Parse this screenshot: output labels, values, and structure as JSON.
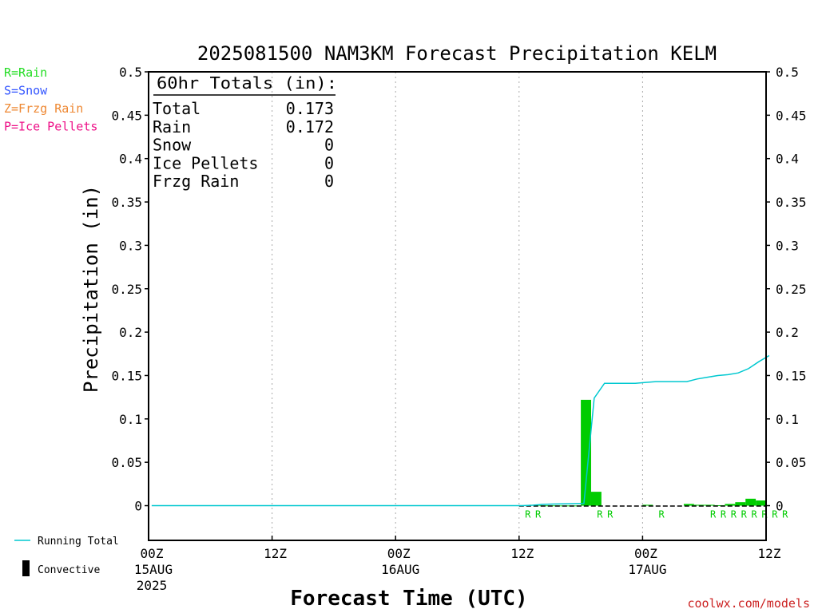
{
  "chart_data": {
    "type": "bar",
    "title": "2025081500 NAM3KM Forecast Precipitation KELM",
    "xlabel": "Forecast Time (UTC)",
    "ylabel": "Precipitation (in)",
    "ylim": [
      -0.04,
      0.5
    ],
    "xlim_hours": [
      0,
      60
    ],
    "y_ticks": [
      0,
      0.05,
      0.1,
      0.15,
      0.2,
      0.25,
      0.3,
      0.35,
      0.4,
      0.45,
      0.5
    ],
    "y_tick_labels": [
      "0",
      "0.05",
      "0.1",
      "0.15",
      "0.2",
      "0.25",
      "0.3",
      "0.35",
      "0.4",
      "0.45",
      "0.5"
    ],
    "x_ticks": [
      {
        "hour": 0,
        "label": "00Z",
        "date": "15AUG",
        "year": "2025"
      },
      {
        "hour": 12,
        "label": "12Z",
        "date": "",
        "year": ""
      },
      {
        "hour": 24,
        "label": "00Z",
        "date": "16AUG",
        "year": ""
      },
      {
        "hour": 36,
        "label": "12Z",
        "date": "",
        "year": ""
      },
      {
        "hour": 48,
        "label": "00Z",
        "date": "17AUG",
        "year": ""
      },
      {
        "hour": 60,
        "label": "12Z",
        "date": "",
        "year": ""
      }
    ],
    "grid": "vertical dotted",
    "legend_placement": "left",
    "series": [
      {
        "name": "Rain",
        "kind": "bar",
        "color": "#00cc00",
        "hours": [
          37,
          38,
          39,
          40,
          41,
          42,
          43,
          44,
          45,
          46,
          47,
          48,
          49,
          50,
          51,
          52,
          53,
          54,
          55,
          56,
          57,
          58,
          59,
          60
        ],
        "values": [
          0.0005,
          0.001,
          0.0003,
          0.0003,
          0.0002,
          0.0002,
          0.122,
          0.016,
          0,
          0,
          0,
          0,
          0.001,
          0,
          0,
          0,
          0.002,
          0.001,
          0.001,
          0.0005,
          0.002,
          0.004,
          0.008,
          0.006
        ]
      },
      {
        "name": "Running Total",
        "kind": "line",
        "color": "#00c8d0",
        "hours": [
          0,
          12,
          24,
          36,
          37,
          38,
          39,
          40,
          41,
          42,
          43,
          44,
          45,
          46,
          47,
          48,
          49,
          50,
          51,
          52,
          53,
          54,
          55,
          56,
          57,
          58,
          59,
          60
        ],
        "values": [
          0,
          0,
          0,
          0,
          0.0005,
          0.0015,
          0.0018,
          0.0021,
          0.0023,
          0.0025,
          0.124,
          0.141,
          0.141,
          0.141,
          0.141,
          0.142,
          0.143,
          0.143,
          0.143,
          0.143,
          0.146,
          0.148,
          0.15,
          0.151,
          0.153,
          0.158,
          0.166,
          0.173
        ]
      }
    ],
    "ptype_markers": {
      "color": "#00cc00",
      "hours": [
        37,
        38,
        44,
        45,
        50,
        55,
        56,
        57,
        58,
        59,
        60,
        61,
        62
      ],
      "labels": [
        "R",
        "R",
        "R",
        "R",
        "R",
        "R",
        "R",
        "R",
        "R",
        "R",
        "R",
        "R",
        "R"
      ]
    },
    "totals": {
      "heading": "60hr Totals (in):",
      "rows": [
        {
          "label": "Total",
          "value": "0.173"
        },
        {
          "label": "Rain",
          "value": "0.172"
        },
        {
          "label": "Snow",
          "value": "0"
        },
        {
          "label": "Ice Pellets",
          "value": "0"
        },
        {
          "label": "Frzg Rain",
          "value": "0"
        }
      ]
    },
    "ptype_legend": [
      {
        "text": "R=Rain",
        "color": "#22dd22"
      },
      {
        "text": "S=Snow",
        "color": "#3355ff"
      },
      {
        "text": "Z=Frzg Rain",
        "color": "#ee8833"
      },
      {
        "text": "P=Ice Pellets",
        "color": "#ee1188"
      }
    ],
    "legend": [
      {
        "text": "Running Total",
        "color": "#00c8d0",
        "symbol": "line"
      },
      {
        "text": "Convective",
        "color": "#000000",
        "symbol": "bar"
      }
    ],
    "credit": "coolwx.com/models"
  }
}
